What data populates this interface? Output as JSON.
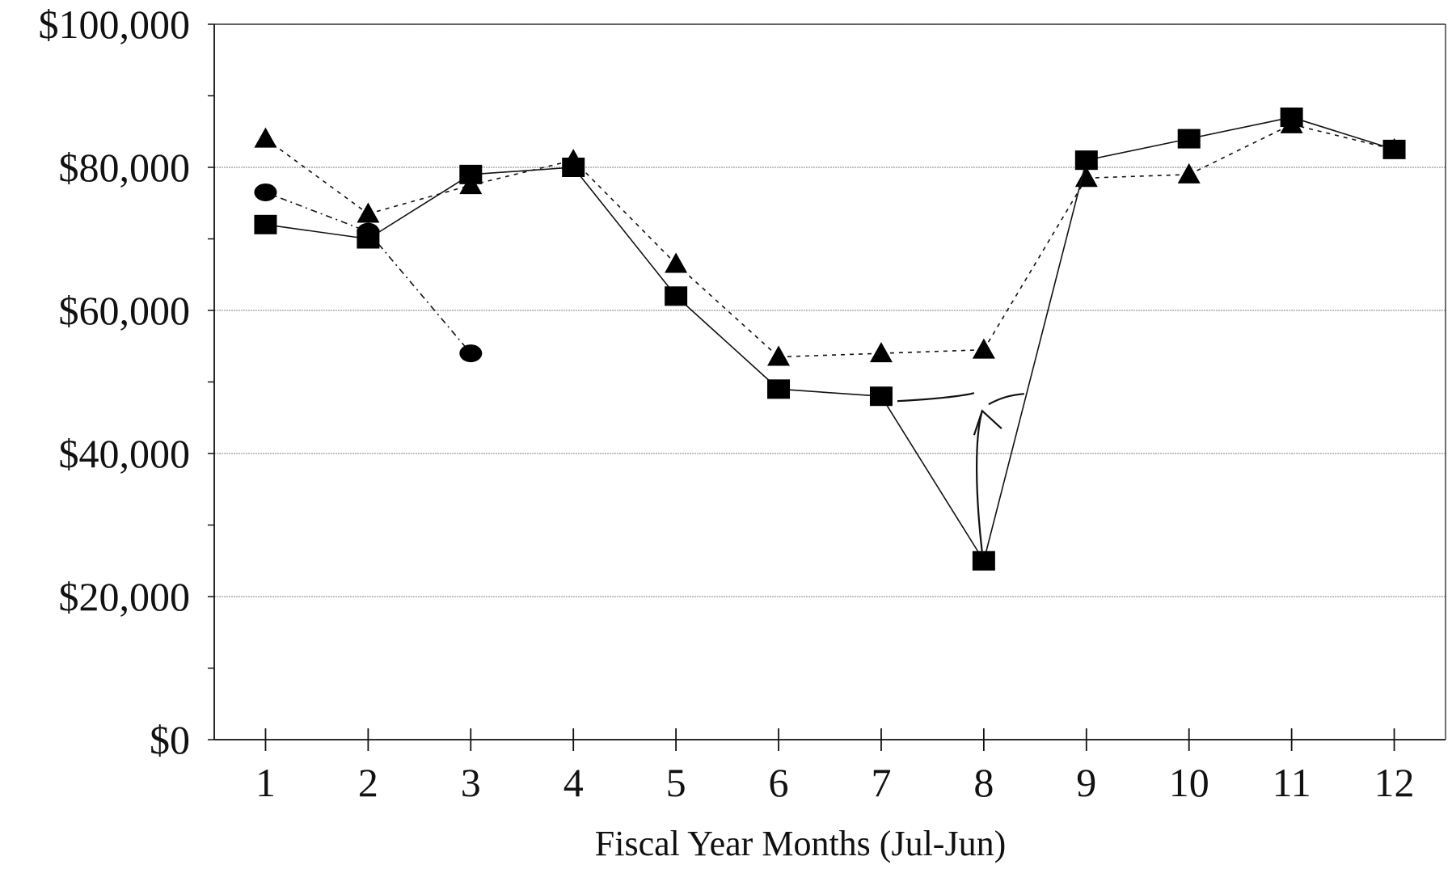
{
  "chart_data": {
    "type": "line",
    "title": "",
    "xlabel": "Fiscal Year Months (Jul-Jun)",
    "ylabel": "",
    "x": [
      1,
      2,
      3,
      4,
      5,
      6,
      7,
      8,
      9,
      10,
      11,
      12
    ],
    "x_tick_labels": [
      "1",
      "2",
      "3",
      "4",
      "5",
      "6",
      "7",
      "8",
      "9",
      "10",
      "11",
      "12"
    ],
    "y_ticks": [
      0,
      20000,
      40000,
      60000,
      80000,
      100000
    ],
    "y_tick_labels": [
      "$0",
      "$20,000",
      "$40,000",
      "$60,000",
      "$80,000",
      "$100,000"
    ],
    "ylim": [
      0,
      100000
    ],
    "xlim": [
      0.5,
      12.5
    ],
    "grid": true,
    "legend": "none",
    "series": [
      {
        "marker": "triangle",
        "line_style": "dashed",
        "values": [
          84000,
          73500,
          77500,
          81000,
          66500,
          53500,
          54000,
          54500,
          78500,
          79000,
          86000,
          82500
        ]
      },
      {
        "marker": "circle",
        "line_style": "dash-dot",
        "values": [
          76500,
          71000,
          54000,
          null,
          null,
          null,
          null,
          null,
          null,
          null,
          null,
          null
        ]
      },
      {
        "marker": "square",
        "line_style": "solid",
        "values": [
          72000,
          70000,
          79000,
          80000,
          62000,
          49000,
          48000,
          25000,
          81000,
          84000,
          87000,
          82500
        ]
      }
    ],
    "colors": {
      "line": "#111111",
      "marker": "#000000",
      "grid": "#9a9a9a",
      "axis": "#111111"
    }
  }
}
